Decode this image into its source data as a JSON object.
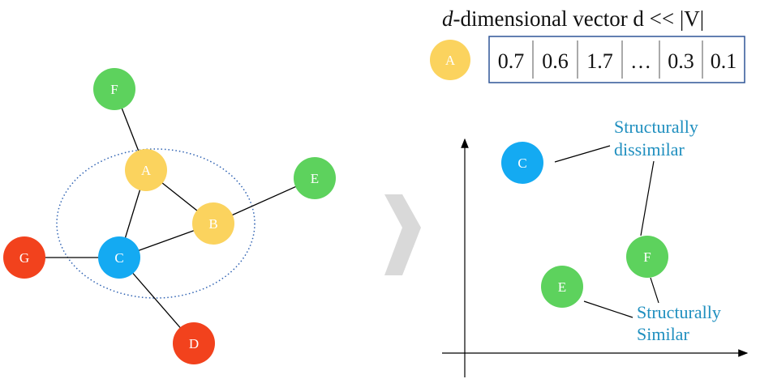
{
  "title": {
    "italic_part": "d",
    "rest": "-dimensional vector d << |V|"
  },
  "vector": {
    "node": "A",
    "values": [
      "0.7",
      "0.6",
      "1.7",
      "…",
      "0.3",
      "0.1"
    ]
  },
  "graph": {
    "nodes": [
      {
        "id": "F",
        "color": "#5dd25d"
      },
      {
        "id": "A",
        "color": "#fbd35e"
      },
      {
        "id": "E",
        "color": "#5dd25d"
      },
      {
        "id": "B",
        "color": "#fbd35e"
      },
      {
        "id": "G",
        "color": "#f2421d"
      },
      {
        "id": "C",
        "color": "#14aaf2"
      },
      {
        "id": "D",
        "color": "#f2421d"
      }
    ],
    "edges": [
      [
        "F",
        "A"
      ],
      [
        "A",
        "C"
      ],
      [
        "A",
        "B"
      ],
      [
        "C",
        "B"
      ],
      [
        "B",
        "E"
      ],
      [
        "G",
        "C"
      ],
      [
        "C",
        "D"
      ]
    ]
  },
  "embedding": {
    "nodes": [
      {
        "id": "C",
        "color": "#14aaf2"
      },
      {
        "id": "F",
        "color": "#5dd25d"
      },
      {
        "id": "E",
        "color": "#5dd25d"
      }
    ],
    "labels": {
      "dissimilar": [
        "Structurally",
        "dissimilar"
      ],
      "similar": [
        "Structurally",
        "Similar"
      ]
    }
  },
  "colors": {
    "arrow": "#d9d9d9",
    "neighborhood": "#2f62b2",
    "vector_border": "#2f5597",
    "annotation": "#1f8fbf"
  }
}
